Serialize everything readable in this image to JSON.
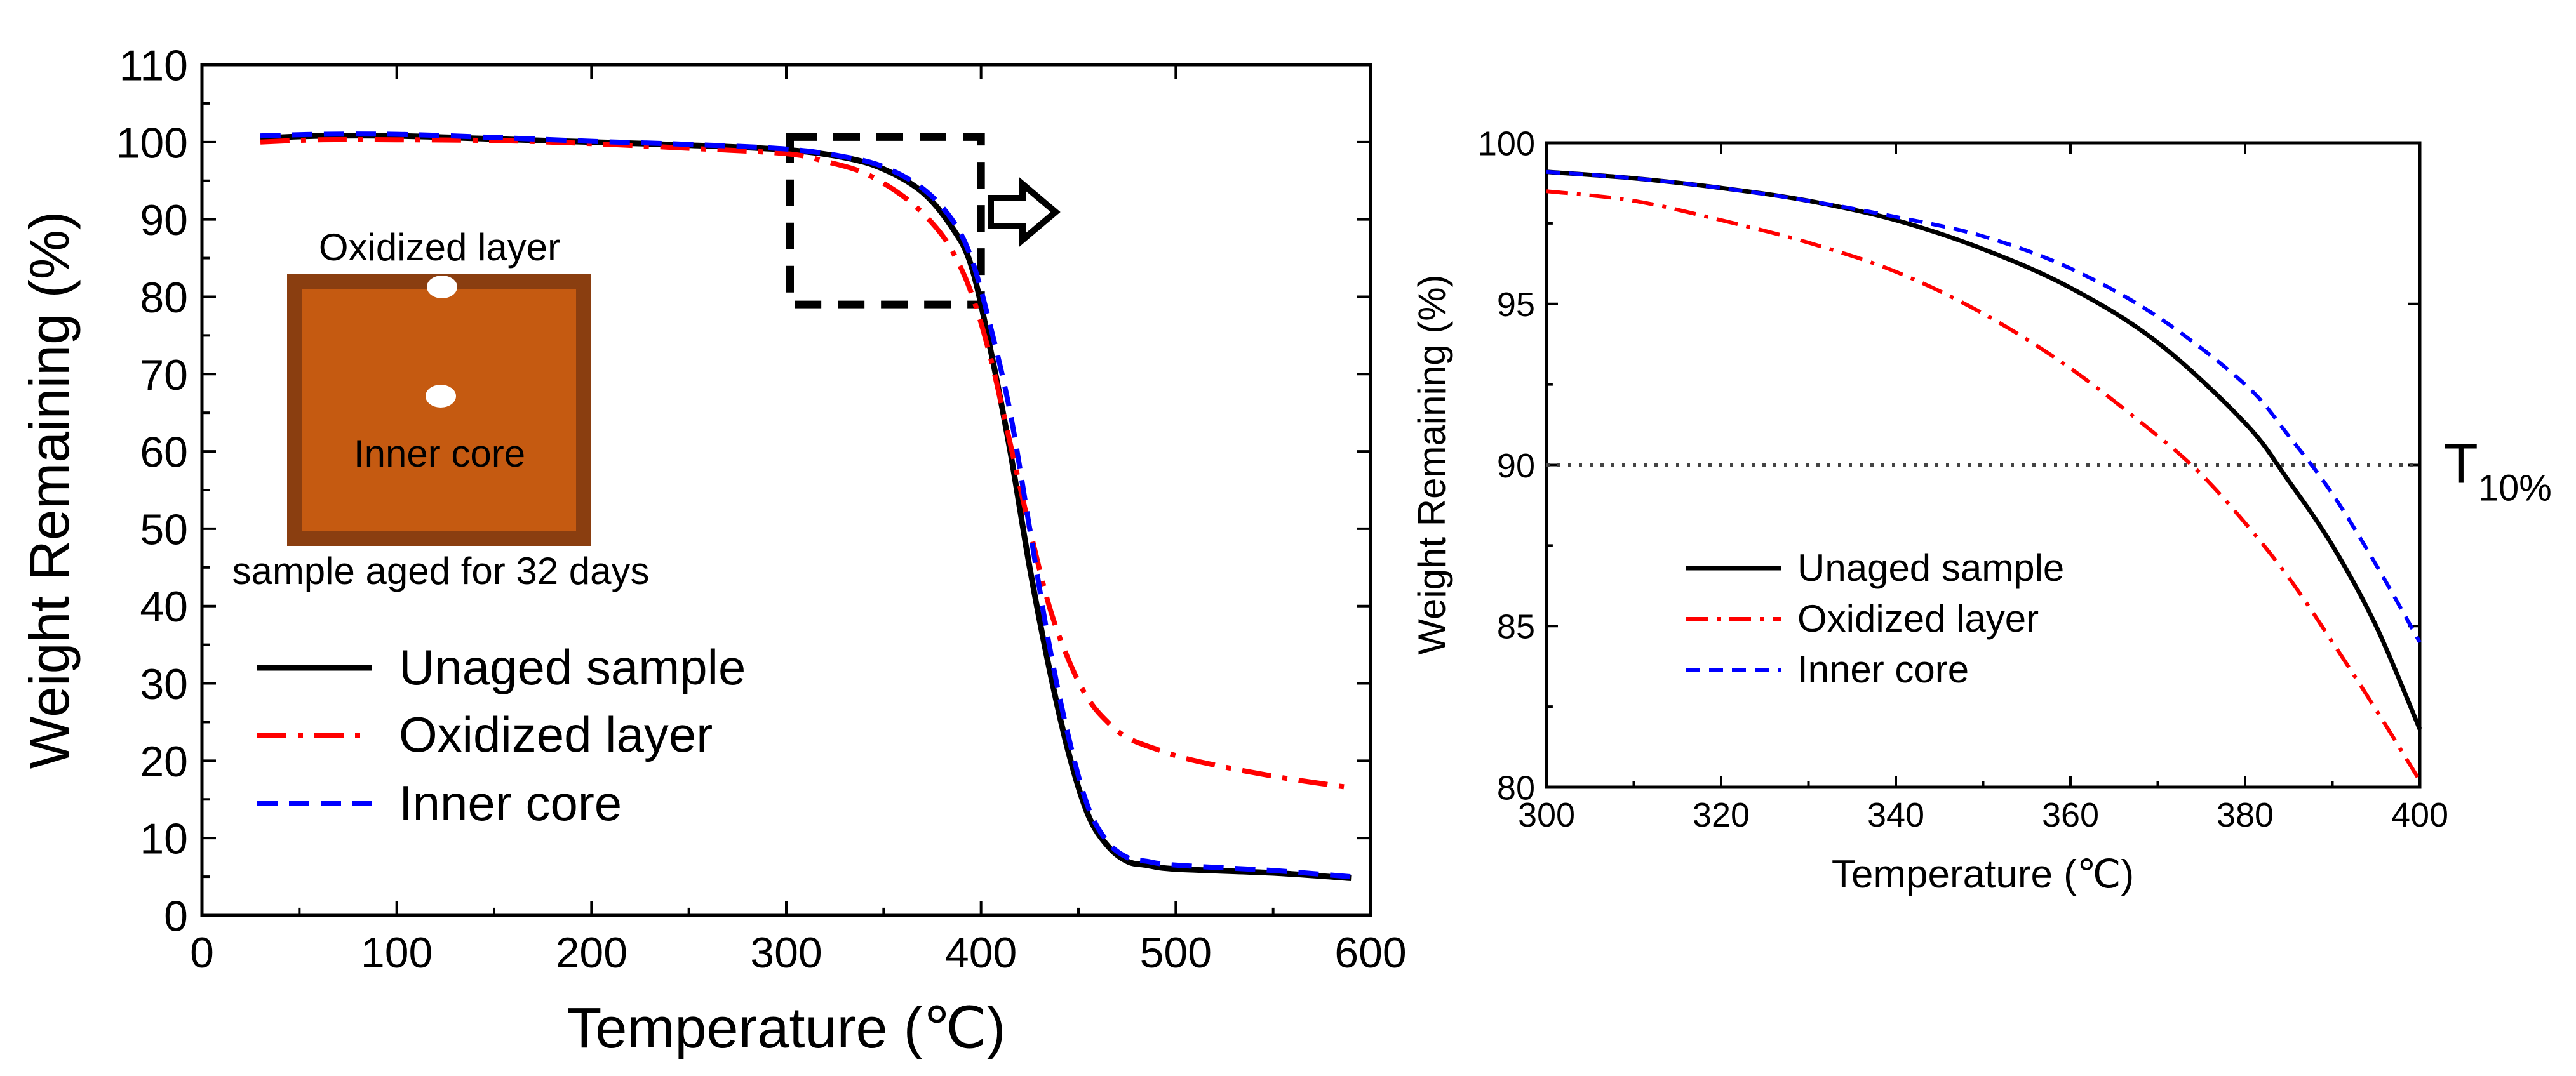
{
  "chart_data": [
    {
      "type": "line",
      "title": "",
      "xlabel": "Temperature (℃)",
      "ylabel": "Weight Remaining (%)",
      "xlim": [
        0,
        600
      ],
      "ylim": [
        0,
        110
      ],
      "xticks": [
        0,
        100,
        200,
        300,
        400,
        500,
        600
      ],
      "yticks": [
        0,
        10,
        20,
        30,
        40,
        50,
        60,
        70,
        80,
        90,
        100,
        110
      ],
      "grid": false,
      "legend": "lower-left",
      "series": [
        {
          "name": "Unaged sample",
          "color": "#000000",
          "style": "solid",
          "x": [
            30,
            60,
            100,
            150,
            200,
            250,
            300,
            330,
            350,
            370,
            385,
            395,
            405,
            415,
            425,
            435,
            445,
            455,
            465,
            475,
            485,
            500,
            550,
            590
          ],
          "y": [
            100.5,
            100.8,
            100.8,
            100.4,
            100,
            99.6,
            99,
            98,
            96.5,
            93.5,
            89,
            84,
            73,
            60,
            45,
            32,
            21,
            13,
            9,
            7,
            6.5,
            6,
            5.5,
            4.8
          ]
        },
        {
          "name": "Oxidized layer",
          "color": "#ff0000",
          "style": "dash-dot",
          "x": [
            30,
            60,
            100,
            150,
            200,
            250,
            300,
            320,
            340,
            360,
            375,
            385,
            395,
            405,
            415,
            425,
            435,
            445,
            455,
            465,
            475,
            490,
            510,
            550,
            590
          ],
          "y": [
            100,
            100.3,
            100.3,
            100.2,
            99.8,
            99.2,
            98.5,
            97.5,
            96,
            93,
            89.5,
            86,
            80.5,
            72,
            61,
            50,
            40,
            33,
            28,
            25,
            23,
            21.5,
            20,
            18,
            16.5
          ]
        },
        {
          "name": "Inner core",
          "color": "#0000ff",
          "style": "dashed",
          "x": [
            30,
            60,
            100,
            150,
            200,
            250,
            300,
            330,
            350,
            370,
            385,
            395,
            405,
            415,
            425,
            435,
            445,
            455,
            465,
            475,
            485,
            500,
            550,
            590
          ],
          "y": [
            100.8,
            101,
            101,
            100.6,
            100.1,
            99.7,
            99.1,
            98.1,
            96.8,
            94,
            90,
            85,
            76,
            65,
            50,
            35,
            23,
            14,
            9.5,
            7.5,
            7,
            6.5,
            5.8,
            5
          ]
        }
      ],
      "annotations": {
        "inset_top_label": "Oxidized layer",
        "inset_center_label": "Inner core",
        "inset_caption": "sample aged for 32 days",
        "zoom_box_x": [
          300,
          400
        ],
        "zoom_box_y": [
          79,
          100
        ]
      }
    },
    {
      "type": "line",
      "title": "",
      "xlabel": "Temperature (℃)",
      "ylabel": "Weight Remaining (%)",
      "xlim": [
        300,
        400
      ],
      "ylim": [
        80,
        100
      ],
      "xticks": [
        300,
        320,
        340,
        360,
        380,
        400
      ],
      "yticks": [
        80,
        85,
        90,
        95,
        100
      ],
      "grid": false,
      "legend": "middle-left",
      "series": [
        {
          "name": "Unaged sample",
          "color": "#000000",
          "style": "solid",
          "x": [
            300,
            310,
            320,
            330,
            340,
            350,
            360,
            370,
            380,
            385,
            390,
            395,
            400
          ],
          "y": [
            99.1,
            98.9,
            98.6,
            98.2,
            97.6,
            96.7,
            95.5,
            93.8,
            91.3,
            89.5,
            87.5,
            85,
            81.8
          ]
        },
        {
          "name": "Oxidized layer",
          "color": "#ff0000",
          "style": "dash-dot",
          "x": [
            300,
            310,
            320,
            330,
            340,
            350,
            360,
            370,
            375,
            380,
            385,
            390,
            395,
            400
          ],
          "y": [
            98.5,
            98.2,
            97.6,
            96.9,
            96,
            94.7,
            93,
            90.9,
            89.7,
            88.2,
            86.5,
            84.5,
            82.4,
            80.2
          ]
        },
        {
          "name": "Inner core",
          "color": "#0000ff",
          "style": "dashed",
          "x": [
            300,
            310,
            320,
            330,
            340,
            350,
            360,
            370,
            380,
            385,
            390,
            395,
            400
          ],
          "y": [
            99.1,
            98.9,
            98.6,
            98.2,
            97.7,
            97.1,
            96.1,
            94.6,
            92.5,
            90.9,
            89.1,
            86.9,
            84.5
          ]
        }
      ],
      "reference_line": {
        "y": 90,
        "label_main": "T",
        "label_sub": "10%"
      }
    }
  ]
}
